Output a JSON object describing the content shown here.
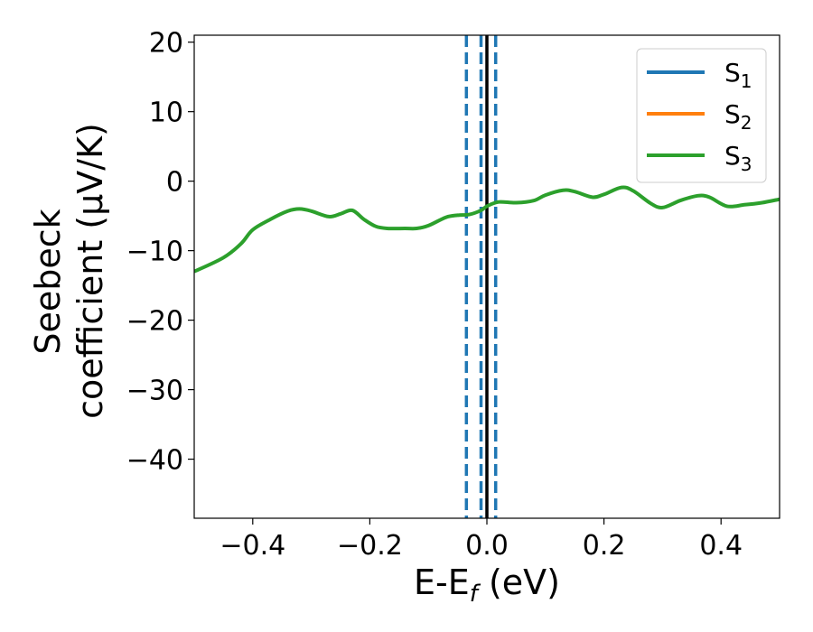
{
  "chart_data": {
    "type": "line",
    "xlabel": "E-E",
    "xlabel_sub": "f",
    "xlabel_unit": " (eV)",
    "ylabel_line1": "Seebeck",
    "ylabel_line2": "coefficient  (μV/K)",
    "xlim": [
      -0.5,
      0.5
    ],
    "ylim": [
      -48.5,
      21
    ],
    "xticks": [
      -0.4,
      -0.2,
      0.0,
      0.2,
      0.4
    ],
    "xtick_labels": [
      "−0.4",
      "−0.2",
      "0.0",
      "0.2",
      "0.4"
    ],
    "yticks": [
      20,
      10,
      0,
      -10,
      -20,
      -30,
      -40
    ],
    "ytick_labels": [
      "20",
      "10",
      "0",
      "−10",
      "−20",
      "−30",
      "−40"
    ],
    "legend_position": "top-right",
    "series": [
      {
        "name": "S",
        "sub": "1",
        "color": "#1f77b4"
      },
      {
        "name": "S",
        "sub": "2",
        "color": "#ff7f0e"
      },
      {
        "name": "S",
        "sub": "3",
        "color": "#2ca02c",
        "x": [
          -0.5,
          -0.45,
          -0.42,
          -0.4,
          -0.37,
          -0.34,
          -0.32,
          -0.3,
          -0.27,
          -0.25,
          -0.23,
          -0.21,
          -0.19,
          -0.17,
          -0.14,
          -0.12,
          -0.1,
          -0.07,
          -0.05,
          -0.03,
          -0.01,
          0.0,
          0.02,
          0.05,
          0.08,
          0.1,
          0.13,
          0.15,
          0.18,
          0.2,
          0.23,
          0.25,
          0.28,
          0.3,
          0.33,
          0.36,
          0.38,
          0.41,
          0.44,
          0.47,
          0.5
        ],
        "values": [
          -13.0,
          -11.0,
          -9.0,
          -7.0,
          -5.5,
          -4.3,
          -4.0,
          -4.3,
          -5.1,
          -4.7,
          -4.2,
          -5.5,
          -6.5,
          -6.8,
          -6.8,
          -6.8,
          -6.4,
          -5.2,
          -4.9,
          -4.8,
          -4.2,
          -3.6,
          -3.0,
          -3.1,
          -2.8,
          -2.0,
          -1.3,
          -1.5,
          -2.3,
          -1.9,
          -0.9,
          -1.4,
          -3.2,
          -3.8,
          -2.8,
          -2.1,
          -2.3,
          -3.6,
          -3.4,
          -3.1,
          -2.6
        ]
      }
    ],
    "reference_lines": {
      "solid": {
        "x": 0.0,
        "color": "#000000"
      },
      "dashed": {
        "x": [
          -0.035,
          -0.01,
          0.015
        ],
        "color": "#1f77b4"
      }
    }
  }
}
